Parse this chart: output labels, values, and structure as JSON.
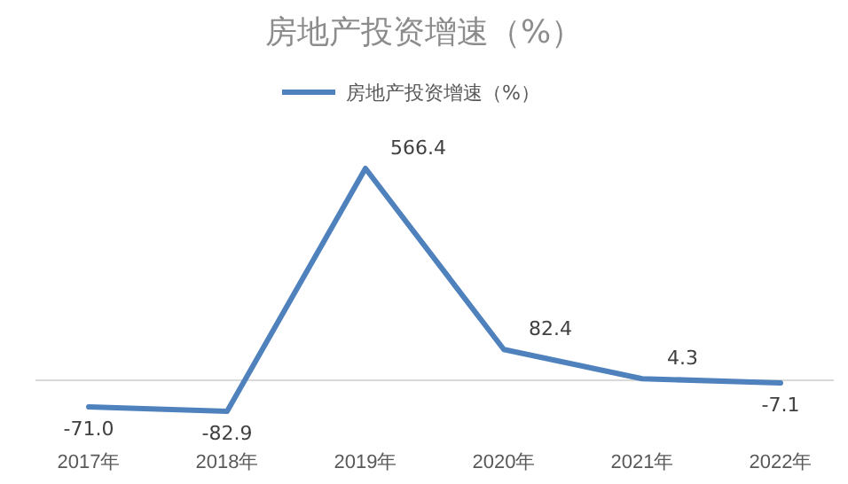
{
  "chart_data": {
    "type": "line",
    "title": "房地产投资增速（%）",
    "categories": [
      "2017年",
      "2018年",
      "2019年",
      "2020年",
      "2021年",
      "2022年"
    ],
    "series": [
      {
        "name": "房地产投资增速（%）",
        "color": "#4f81bd",
        "values": [
          -71.0,
          -82.9,
          566.4,
          82.4,
          4.3,
          -7.1
        ],
        "value_labels": [
          "-71.0",
          "-82.9",
          "566.4",
          "82.4",
          "4.3",
          "-7.1"
        ]
      }
    ],
    "legend": "top",
    "marker": "none",
    "line_style": "solid"
  }
}
